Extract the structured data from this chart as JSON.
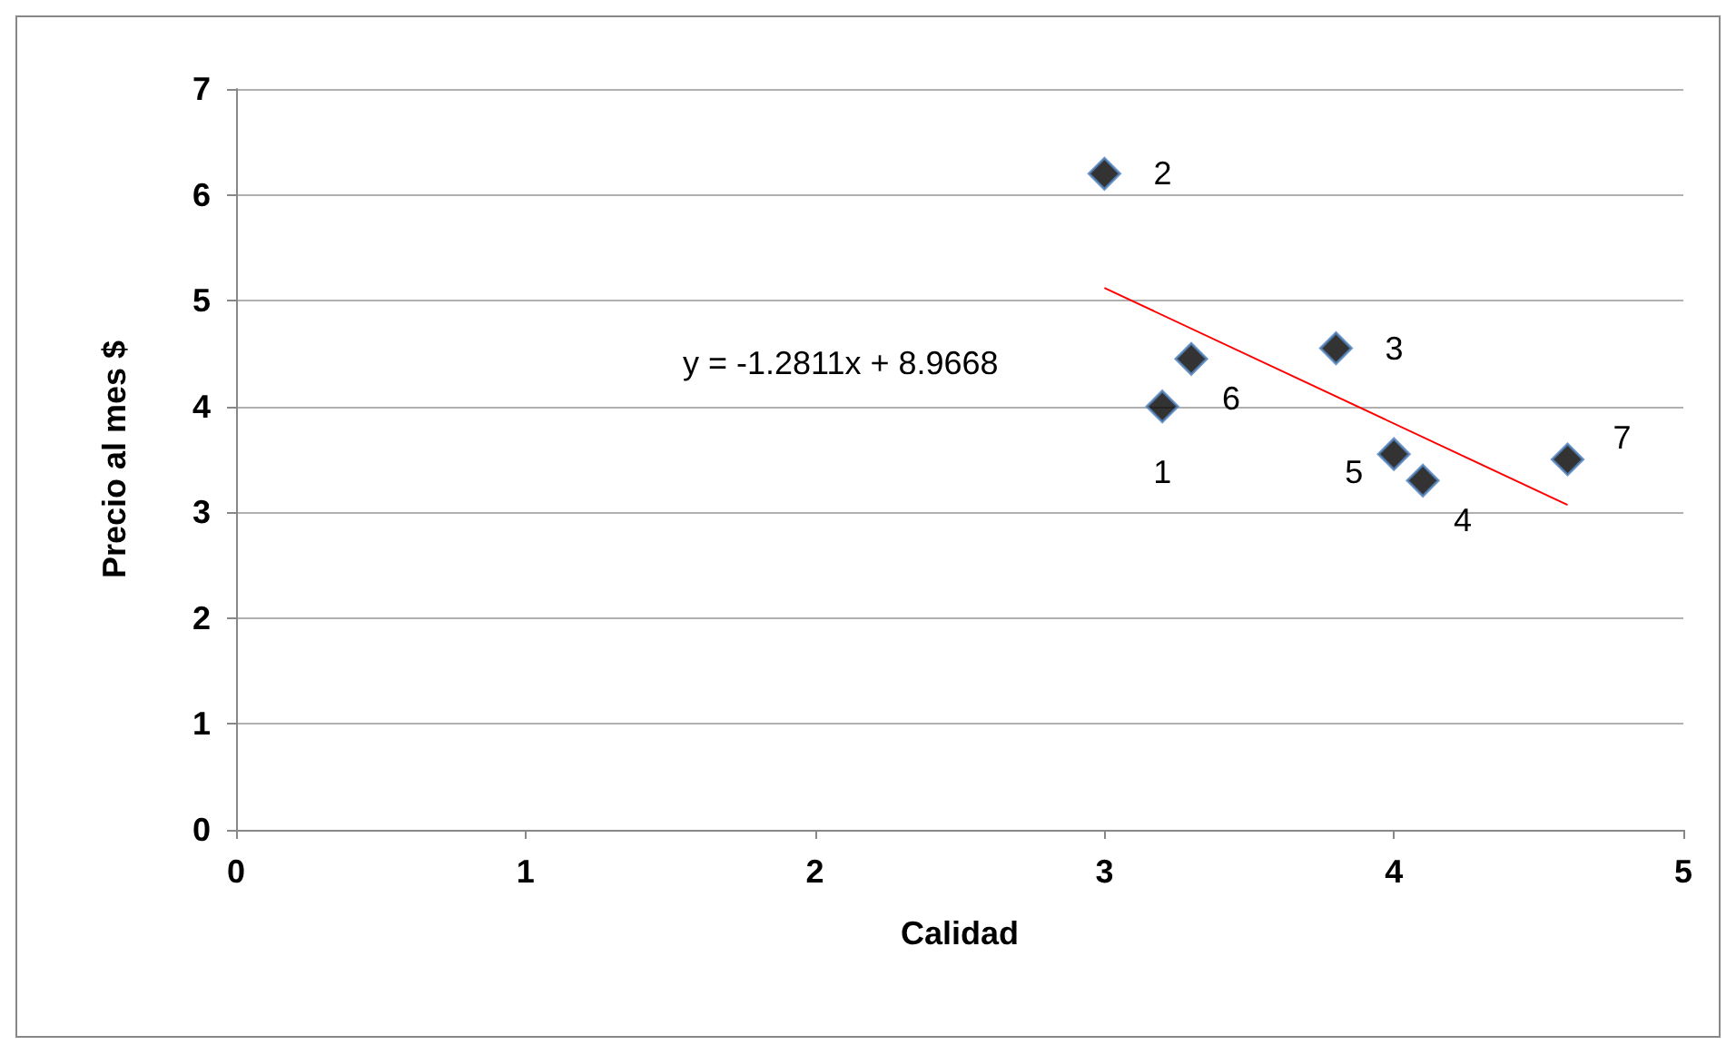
{
  "chart_data": {
    "type": "scatter",
    "xlabel": "Calidad",
    "ylabel": "Precio al mes $",
    "xlim": [
      0,
      5
    ],
    "xticks": [
      0,
      1,
      2,
      3,
      4,
      5
    ],
    "ylim": [
      0,
      7
    ],
    "yticks": [
      0,
      1,
      2,
      3,
      4,
      5,
      6,
      7
    ],
    "grid": "y",
    "marker": "diamond",
    "series": [
      {
        "color": "#000000",
        "x": [
          3.2,
          3.0,
          3.8,
          4.1,
          4.0,
          3.3,
          4.6
        ],
        "values": [
          4.0,
          6.2,
          4.55,
          3.3,
          3.55,
          4.45,
          3.5
        ]
      },
      {
        "type": "line",
        "color": "#ff0000",
        "x": [
          3.0,
          4.6
        ],
        "values": [
          5.12,
          3.07
        ],
        "marker": "none"
      }
    ],
    "annotations": [
      "y = -1.2811x + 8.9668",
      {
        "text": "1",
        "x": 3.2,
        "y": 4.0
      },
      {
        "text": "2",
        "x": 3.0,
        "y": 6.2
      },
      {
        "text": "3",
        "x": 3.8,
        "y": 4.55
      },
      {
        "text": "4",
        "x": 4.1,
        "y": 3.3
      },
      {
        "text": "5",
        "x": 4.0,
        "y": 3.55
      },
      {
        "text": "6",
        "x": 3.3,
        "y": 4.45
      },
      {
        "text": "7",
        "x": 4.6,
        "y": 3.5
      }
    ]
  }
}
